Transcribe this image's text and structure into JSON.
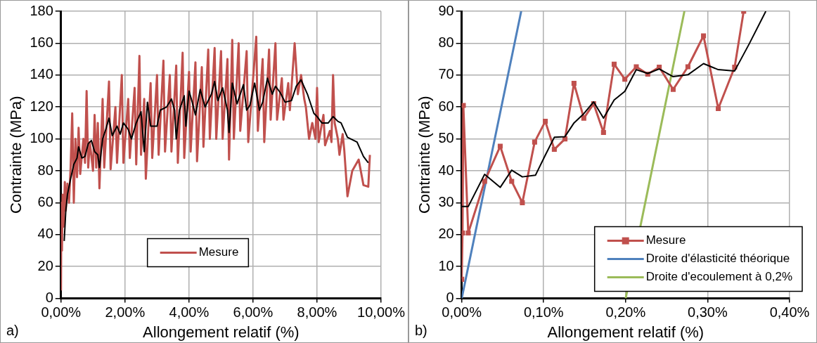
{
  "chart_data": [
    {
      "type": "line",
      "xlabel": "Allongement relatif (%)",
      "ylabel": "Contrainte (MPa)",
      "annotations": [
        "a)"
      ],
      "xlim": [
        0,
        10
      ],
      "xticks": [
        {
          "value": 0,
          "label": "0,00%"
        },
        {
          "value": 2,
          "label": "2,00%"
        },
        {
          "value": 4,
          "label": "4,00%"
        },
        {
          "value": 6,
          "label": "6,00%"
        },
        {
          "value": 8,
          "label": "8,00%"
        },
        {
          "value": 10,
          "label": "10,00%"
        }
      ],
      "ylim": [
        0,
        180
      ],
      "yticks": [
        0,
        20,
        40,
        60,
        80,
        100,
        120,
        140,
        160,
        180
      ],
      "grid": true,
      "legend": "bottom",
      "marker": "none",
      "series": [
        {
          "name": "Mesure",
          "color": "#c0504d",
          "x": [
            0,
            0.01,
            0.03,
            0.05,
            0.08,
            0.12,
            0.15,
            0.2,
            0.25,
            0.3,
            0.35,
            0.4,
            0.45,
            0.5,
            0.55,
            0.6,
            0.7,
            0.75,
            0.8,
            0.85,
            0.9,
            1.0,
            1.05,
            1.1,
            1.15,
            1.2,
            1.3,
            1.35,
            1.5,
            1.55,
            1.7,
            1.75,
            1.9,
            1.95,
            2.1,
            2.15,
            2.3,
            2.35,
            2.45,
            2.5,
            2.6,
            2.65,
            2.8,
            2.85,
            3.0,
            3.05,
            3.2,
            3.25,
            3.4,
            3.45,
            3.6,
            3.65,
            3.8,
            3.85,
            4.0,
            4.05,
            4.2,
            4.25,
            4.4,
            4.45,
            4.6,
            4.65,
            4.8,
            4.85,
            5.0,
            5.05,
            5.2,
            5.25,
            5.35,
            5.4,
            5.55,
            5.6,
            5.8,
            5.85,
            6.1,
            6.15,
            6.3,
            6.35,
            6.5,
            6.55,
            6.7,
            6.75,
            6.9,
            6.95,
            7.1,
            7.15,
            7.3,
            7.4,
            7.5,
            7.6,
            7.65,
            7.75,
            7.85,
            7.95,
            8.0,
            8.05,
            8.2,
            8.25,
            8.4,
            8.45,
            8.5,
            8.55,
            8.65,
            8.7,
            8.8,
            8.85,
            8.95,
            9.1,
            9.3,
            9.45,
            9.6,
            9.65
          ],
          "values": [
            5,
            60,
            30,
            65,
            45,
            73,
            55,
            72,
            60,
            82,
            116,
            60,
            100,
            76,
            107,
            78,
            100,
            85,
            130,
            82,
            98,
            80,
            115,
            82,
            110,
            69,
            125,
            82,
            136,
            81,
            120,
            85,
            140,
            85,
            125,
            88,
            132,
            84,
            152,
            90,
            125,
            75,
            135,
            88,
            140,
            90,
            149,
            92,
            140,
            92,
            146,
            85,
            154,
            88,
            142,
            92,
            148,
            86,
            145,
            95,
            156,
            100,
            157,
            100,
            155,
            100,
            150,
            87,
            162,
            100,
            160,
            105,
            155,
            98,
            164,
            105,
            150,
            98,
            156,
            112,
            160,
            112,
            138,
            112,
            135,
            118,
            160,
            128,
            140,
            125,
            120,
            100,
            110,
            100,
            132,
            98,
            115,
            96,
            105,
            98,
            140,
            110,
            100,
            90,
            103,
            93,
            64,
            80,
            87,
            71,
            70,
            90
          ]
        },
        {
          "color": "#000000",
          "x": [
            0.1,
            0.15,
            0.2,
            0.3,
            0.4,
            0.5,
            0.55,
            0.65,
            0.75,
            0.85,
            0.95,
            1.05,
            1.15,
            1.2,
            1.3,
            1.4,
            1.5,
            1.6,
            1.75,
            1.85,
            1.95,
            2.1,
            2.2,
            2.35,
            2.5,
            2.6,
            2.7,
            2.8,
            3.0,
            3.1,
            3.3,
            3.45,
            3.55,
            3.6,
            3.7,
            3.85,
            3.9,
            4.0,
            4.1,
            4.2,
            4.35,
            4.5,
            4.7,
            4.8,
            4.9,
            5.05,
            5.2,
            5.25,
            5.35,
            5.5,
            5.7,
            5.8,
            5.9,
            6.05,
            6.2,
            6.3,
            6.45,
            6.6,
            6.7,
            6.85,
            7.0,
            7.2,
            7.35,
            7.5,
            7.7,
            7.9,
            8.0,
            8.15,
            8.35,
            8.5,
            8.65,
            8.75,
            8.95,
            9.25,
            9.45,
            9.6
          ],
          "values": [
            36,
            55,
            65,
            75,
            84,
            88,
            95,
            88,
            89,
            97,
            99,
            92,
            90,
            82,
            100,
            106,
            113,
            102,
            108,
            103,
            110,
            106,
            100,
            110,
            117,
            92,
            123,
            108,
            108,
            118,
            120,
            125,
            118,
            100,
            118,
            127,
            108,
            130,
            123,
            115,
            131,
            120,
            128,
            136,
            124,
            132,
            118,
            104,
            135,
            122,
            134,
            118,
            121,
            135,
            118,
            123,
            138,
            128,
            133,
            129,
            123,
            124,
            133,
            137,
            128,
            116,
            114,
            110,
            110,
            114,
            111,
            110,
            101,
            98,
            89,
            85
          ]
        }
      ]
    },
    {
      "type": "line",
      "xlabel": "Allongement relatif (%)",
      "ylabel": "Contrainte (MPa)",
      "annotations": [
        "b)"
      ],
      "xlim": [
        0,
        0.4
      ],
      "xticks": [
        {
          "value": 0,
          "label": "0,00%"
        },
        {
          "value": 0.1,
          "label": "0,10%"
        },
        {
          "value": 0.2,
          "label": "0,20%"
        },
        {
          "value": 0.3,
          "label": "0,30%"
        },
        {
          "value": 0.4,
          "label": "0,40%"
        }
      ],
      "ylim": [
        0,
        90
      ],
      "yticks": [
        0,
        10,
        20,
        30,
        40,
        50,
        60,
        70,
        80,
        90
      ],
      "grid": true,
      "legend": "bottom right",
      "series": [
        {
          "name": "Mesure",
          "color": "#c0504d",
          "marker": "square",
          "x": [
            0,
            0.001,
            0.002,
            0.008,
            0.028,
            0.047,
            0.061,
            0.074,
            0.089,
            0.102,
            0.113,
            0.126,
            0.137,
            0.149,
            0.161,
            0.173,
            0.186,
            0.199,
            0.213,
            0.227,
            0.241,
            0.258,
            0.276,
            0.295,
            0.313,
            0.333,
            0.344
          ],
          "values": [
            6,
            20.5,
            60.5,
            20.5,
            36.7,
            47.7,
            36.7,
            30,
            49,
            55.5,
            46.7,
            50,
            67.4,
            56.5,
            61,
            52,
            73.4,
            68.7,
            72.6,
            70.3,
            72.5,
            65.5,
            72.6,
            82.3,
            59.5,
            72.5,
            90
          ]
        },
        {
          "color": "#000000",
          "marker": "none",
          "x": [
            0,
            0.008,
            0.028,
            0.047,
            0.061,
            0.074,
            0.09,
            0.102,
            0.113,
            0.126,
            0.137,
            0.149,
            0.161,
            0.173,
            0.186,
            0.199,
            0.213,
            0.227,
            0.241,
            0.258,
            0.276,
            0.295,
            0.313,
            0.333,
            0.351,
            0.371
          ],
          "values": [
            28.8,
            28.8,
            38.9,
            34.8,
            40.2,
            38.1,
            38.6,
            44.9,
            50.5,
            50.7,
            55,
            57.9,
            61.6,
            56.5,
            62.2,
            64.9,
            71.7,
            70.5,
            71.9,
            69.5,
            70.1,
            73.6,
            71.7,
            71.3,
            79.9,
            90
          ]
        },
        {
          "name": "Droite d'élasticité théorique",
          "color": "#4f81bd",
          "marker": "none",
          "x": [
            0,
            0.0726
          ],
          "values": [
            0,
            90
          ]
        },
        {
          "name": "Droite d'ecoulement à 0,2%",
          "color": "#9bbb59",
          "marker": "none",
          "x": [
            0.2,
            0.2717
          ],
          "values": [
            0,
            90
          ]
        }
      ]
    }
  ]
}
